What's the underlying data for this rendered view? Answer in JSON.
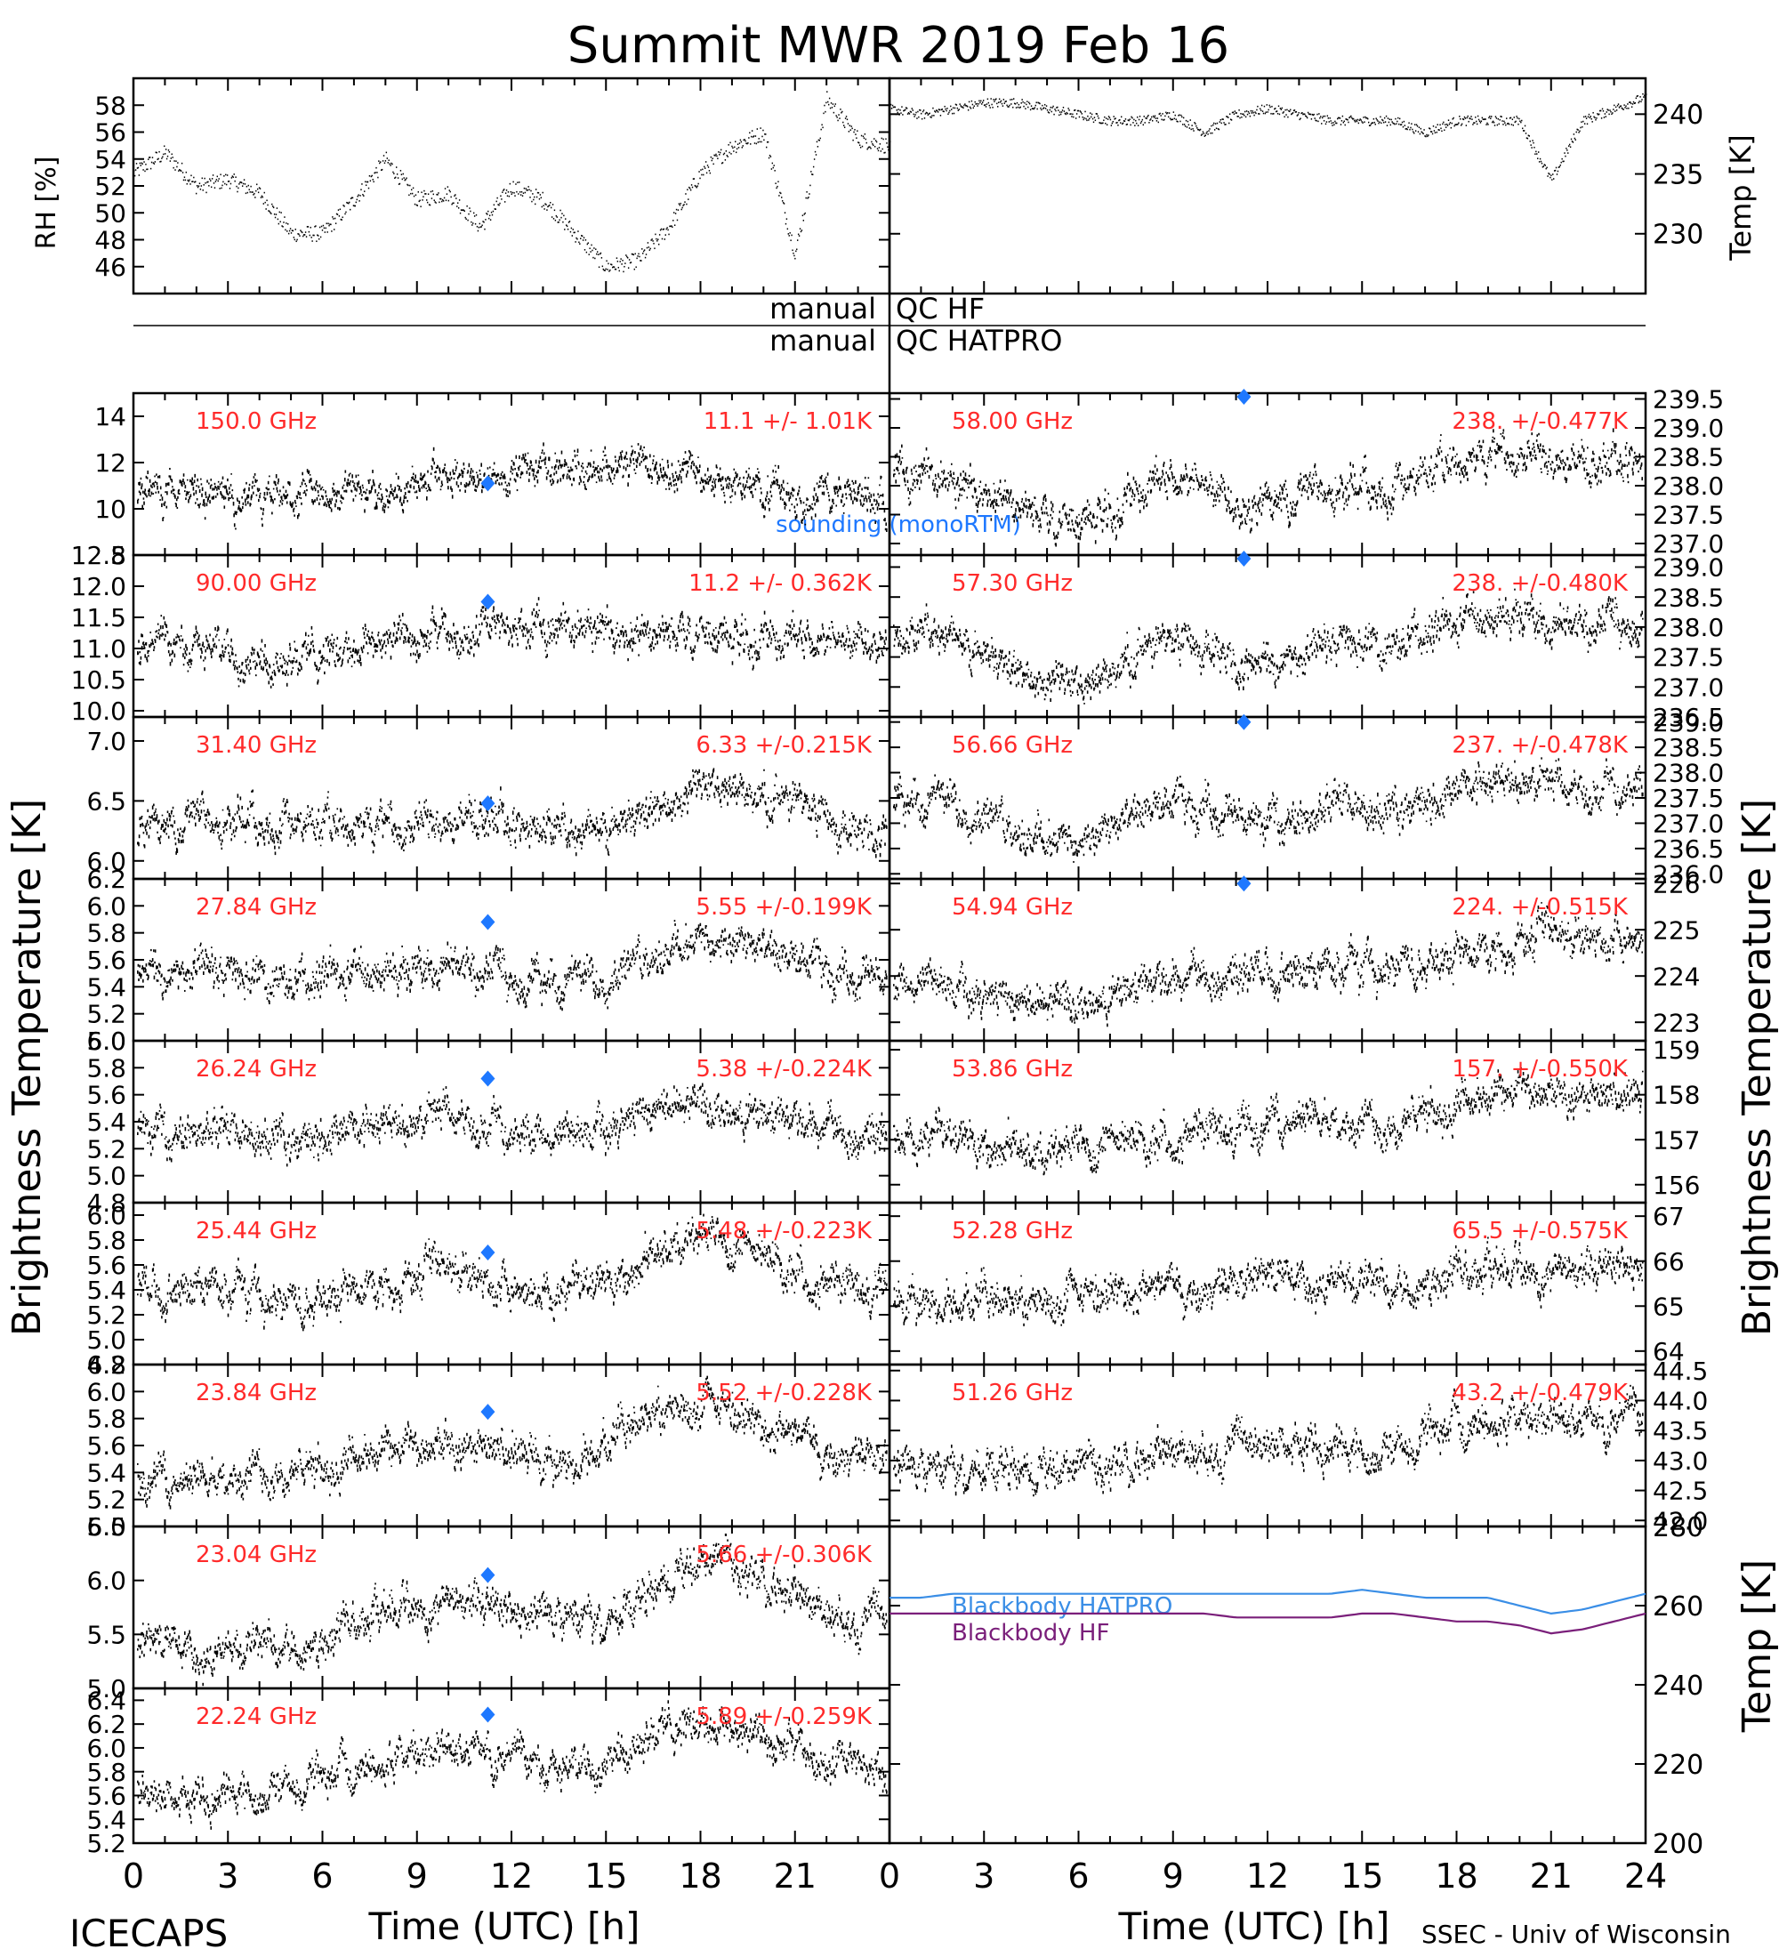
{
  "title": "Summit MWR 2019 Feb 16",
  "footer": {
    "left": "ICECAPS",
    "right": "SSEC - Univ of Wisconsin"
  },
  "axes": {
    "xlabel": "Time (UTC) [h]",
    "xticks": [
      "0",
      "3",
      "6",
      "9",
      "12",
      "15",
      "18",
      "21",
      "24"
    ],
    "ylabel_left": "Brightness Temperature [K]",
    "ylabel_right": "Brightness Temperature [K]",
    "rh_label": "RH [%]",
    "temp_label": "Temp [K]"
  },
  "qc": {
    "line1_left": "manual",
    "line1_right": "QC HF",
    "line2_left": "manual",
    "line2_right": "QC HATPRO"
  },
  "legend": {
    "sounding": "sounding (monoRTM)",
    "bb_hatpro": "Blackbody HATPRO",
    "bb_hf": "Blackbody HF"
  },
  "colors": {
    "label": "#ff2a2a",
    "sounding": "#1e78ff",
    "bb_hatpro": "#3a8ee6",
    "bb_hf": "#7a1f7a",
    "data": "#000000"
  },
  "chart_data": [
    {
      "type": "scatter",
      "panel": "RH",
      "ylim": [
        44,
        60
      ],
      "yticks": [
        "46",
        "48",
        "50",
        "52",
        "54",
        "56",
        "58"
      ],
      "x": [
        0,
        1,
        2,
        3,
        4,
        5,
        6,
        7,
        8,
        9,
        10,
        11,
        12,
        13,
        14,
        15,
        16,
        17,
        18,
        19,
        20,
        21,
        22,
        23,
        24
      ],
      "y": [
        53,
        54.5,
        52,
        52.5,
        51.5,
        48.5,
        48.5,
        51,
        54,
        51,
        51.5,
        49,
        52,
        51,
        48.5,
        46,
        46.5,
        49,
        53,
        55,
        56,
        47,
        58.5,
        55.5,
        55
      ]
    },
    {
      "type": "scatter",
      "panel": "Temp",
      "ylim": [
        225,
        243
      ],
      "yticks": [
        "230",
        "235",
        "240"
      ],
      "x": [
        0,
        1,
        2,
        3,
        4,
        5,
        6,
        7,
        8,
        9,
        10,
        11,
        12,
        13,
        14,
        15,
        16,
        17,
        18,
        19,
        20,
        21,
        22,
        23,
        24
      ],
      "y": [
        240.5,
        240,
        240.5,
        241,
        241,
        240.5,
        240,
        239.5,
        239.5,
        240,
        238.5,
        240,
        240.5,
        240,
        239.5,
        239.5,
        239.5,
        238.5,
        239.5,
        239.5,
        239.5,
        234.5,
        239.5,
        240.5,
        241.5
      ]
    },
    {
      "type": "scatter",
      "freq": "150.0 GHz",
      "stat": "11.1 +/- 1.01K",
      "ylim": [
        8,
        15
      ],
      "yticks": [
        "8",
        "10",
        "12",
        "14"
      ],
      "sounding": [
        11.25,
        11.1
      ],
      "trend": [
        10.5,
        10.8,
        11.0,
        10.4,
        10.2,
        10.4,
        10.6,
        10.8,
        11.0,
        11.1,
        11.3,
        11.4,
        11.6,
        11.8,
        11.9,
        12.0,
        11.8,
        11.9,
        11.7,
        11.2,
        11.0,
        10.8,
        10.7,
        10.6,
        10.6
      ]
    },
    {
      "type": "scatter",
      "freq": "90.00 GHz",
      "stat": "11.2 +/- 0.362K",
      "ylim": [
        9.9,
        12.5
      ],
      "yticks": [
        "10.0",
        "10.5",
        "11.0",
        "11.5",
        "12.0",
        "12.5"
      ],
      "sounding": [
        11.25,
        11.75
      ],
      "trend": [
        11.0,
        11.0,
        11.1,
        11.0,
        10.9,
        10.9,
        11.0,
        11.1,
        11.2,
        11.2,
        11.2,
        11.3,
        11.3,
        11.4,
        11.4,
        11.4,
        11.3,
        11.3,
        11.3,
        11.2,
        11.2,
        11.2,
        11.2,
        11.2,
        11.3
      ]
    },
    {
      "type": "scatter",
      "freq": "31.40 GHz",
      "stat": "6.33 +/-0.215K",
      "ylim": [
        5.85,
        7.2
      ],
      "yticks": [
        "6.0",
        "6.5",
        "7.0"
      ],
      "sounding": [
        11.25,
        6.48
      ],
      "trend": [
        6.3,
        6.3,
        6.4,
        6.4,
        6.3,
        6.3,
        6.3,
        6.3,
        6.3,
        6.3,
        6.3,
        6.4,
        6.3,
        6.3,
        6.2,
        6.3,
        6.4,
        6.5,
        6.6,
        6.6,
        6.5,
        6.5,
        6.4,
        6.3,
        6.3
      ]
    },
    {
      "type": "scatter",
      "freq": "27.84 GHz",
      "stat": "5.55 +/-0.199K",
      "ylim": [
        5.0,
        6.2
      ],
      "yticks": [
        "5.0",
        "5.2",
        "5.4",
        "5.6",
        "5.8",
        "6.0",
        "6.2"
      ],
      "sounding": [
        11.25,
        5.88
      ],
      "trend": [
        5.55,
        5.5,
        5.6,
        5.5,
        5.45,
        5.4,
        5.5,
        5.5,
        5.55,
        5.55,
        5.6,
        5.55,
        5.5,
        5.45,
        5.45,
        5.5,
        5.6,
        5.7,
        5.75,
        5.7,
        5.65,
        5.6,
        5.55,
        5.5,
        5.45
      ]
    },
    {
      "type": "scatter",
      "freq": "26.24 GHz",
      "stat": "5.38 +/-0.224K",
      "ylim": [
        4.8,
        6.0
      ],
      "yticks": [
        "4.8",
        "5.0",
        "5.2",
        "5.4",
        "5.6",
        "5.8",
        "6.0"
      ],
      "sounding": [
        11.25,
        5.72
      ],
      "trend": [
        5.35,
        5.3,
        5.4,
        5.3,
        5.3,
        5.25,
        5.35,
        5.35,
        5.4,
        5.4,
        5.45,
        5.4,
        5.35,
        5.3,
        5.3,
        5.35,
        5.45,
        5.55,
        5.55,
        5.5,
        5.45,
        5.4,
        5.35,
        5.3,
        5.3
      ]
    },
    {
      "type": "scatter",
      "freq": "25.44 GHz",
      "stat": "5.48 +/-0.223K",
      "ylim": [
        4.8,
        6.1
      ],
      "yticks": [
        "4.8",
        "5.0",
        "5.2",
        "5.4",
        "5.6",
        "5.8",
        "6.0"
      ],
      "sounding": [
        11.25,
        5.7
      ],
      "trend": [
        5.4,
        5.35,
        5.45,
        5.4,
        5.35,
        5.3,
        5.4,
        5.45,
        5.5,
        5.5,
        5.55,
        5.5,
        5.45,
        5.4,
        5.4,
        5.45,
        5.6,
        5.8,
        5.85,
        5.8,
        5.7,
        5.6,
        5.5,
        5.45,
        5.4
      ]
    },
    {
      "type": "scatter",
      "freq": "23.84 GHz",
      "stat": "5.52 +/-0.228K",
      "ylim": [
        5.0,
        6.2
      ],
      "yticks": [
        "5.0",
        "5.2",
        "5.4",
        "5.6",
        "5.8",
        "6.0",
        "6.2"
      ],
      "sounding": [
        11.25,
        5.85
      ],
      "trend": [
        5.4,
        5.35,
        5.35,
        5.4,
        5.4,
        5.4,
        5.45,
        5.5,
        5.55,
        5.55,
        5.6,
        5.6,
        5.55,
        5.5,
        5.5,
        5.6,
        5.75,
        5.85,
        5.9,
        5.85,
        5.75,
        5.7,
        5.6,
        5.55,
        5.5
      ]
    },
    {
      "type": "scatter",
      "freq": "23.04 GHz",
      "stat": "5.66 +/-0.306K",
      "ylim": [
        5.0,
        6.5
      ],
      "yticks": [
        "5.0",
        "5.5",
        "6.0",
        "6.5"
      ],
      "sounding": [
        11.25,
        6.05
      ],
      "trend": [
        5.4,
        5.4,
        5.35,
        5.35,
        5.4,
        5.45,
        5.5,
        5.65,
        5.75,
        5.8,
        5.85,
        5.85,
        5.75,
        5.7,
        5.65,
        5.6,
        5.75,
        6.0,
        6.15,
        6.2,
        6.05,
        5.9,
        5.75,
        5.65,
        5.6
      ]
    },
    {
      "type": "scatter",
      "freq": "22.24 GHz",
      "stat": "5.89 +/-0.259K",
      "ylim": [
        5.2,
        6.5
      ],
      "yticks": [
        "5.2",
        "5.4",
        "5.6",
        "5.8",
        "6.0",
        "6.2",
        "6.4"
      ],
      "sounding": [
        11.25,
        6.28
      ],
      "trend": [
        5.65,
        5.6,
        5.6,
        5.65,
        5.65,
        5.7,
        5.75,
        5.85,
        5.9,
        5.95,
        6.0,
        6.0,
        5.9,
        5.85,
        5.85,
        5.95,
        6.1,
        6.2,
        6.25,
        6.2,
        6.1,
        6.0,
        5.9,
        5.85,
        5.8
      ]
    },
    {
      "type": "scatter",
      "freq": "58.00 GHz",
      "stat": "238. +/-0.477K",
      "ylim": [
        236.8,
        239.6
      ],
      "yticks": [
        "237.0",
        "237.5",
        "238.0",
        "238.5",
        "239.0",
        "239.5"
      ],
      "sounding": [
        11.25,
        239.55
      ],
      "trend": [
        238.2,
        238.3,
        238.1,
        238.0,
        237.7,
        237.5,
        237.4,
        237.6,
        238.0,
        238.2,
        238.1,
        237.8,
        237.7,
        237.9,
        238.1,
        238.0,
        237.9,
        238.2,
        238.4,
        238.5,
        238.6,
        238.4,
        238.4,
        238.4,
        238.5
      ]
    },
    {
      "type": "scatter",
      "freq": "57.30 GHz",
      "stat": "238. +/-0.480K",
      "ylim": [
        236.5,
        239.2
      ],
      "yticks": [
        "236.5",
        "237.0",
        "237.5",
        "238.0",
        "238.5",
        "239.0"
      ],
      "sounding": [
        11.25,
        239.15
      ],
      "trend": [
        237.8,
        237.9,
        237.8,
        237.6,
        237.3,
        237.1,
        237.0,
        237.2,
        237.6,
        237.8,
        237.8,
        237.5,
        237.4,
        237.6,
        237.8,
        237.7,
        237.6,
        237.9,
        238.1,
        238.2,
        238.3,
        238.1,
        238.1,
        238.1,
        238.2
      ]
    },
    {
      "type": "scatter",
      "freq": "56.66 GHz",
      "stat": "237. +/-0.478K",
      "ylim": [
        235.9,
        239.1
      ],
      "yticks": [
        "236.0",
        "236.5",
        "237.0",
        "237.5",
        "238.0",
        "238.5",
        "239.0"
      ],
      "sounding": [
        11.25,
        239.0
      ],
      "trend": [
        237.4,
        237.5,
        237.4,
        237.2,
        236.9,
        236.7,
        236.6,
        236.8,
        237.2,
        237.4,
        237.4,
        237.1,
        237.0,
        237.2,
        237.4,
        237.3,
        237.2,
        237.5,
        237.7,
        237.8,
        237.9,
        237.7,
        237.7,
        237.7,
        237.8
      ]
    },
    {
      "type": "scatter",
      "freq": "54.94 GHz",
      "stat": "224. +/-0.515K",
      "ylim": [
        222.6,
        226.1
      ],
      "yticks": [
        "223",
        "224",
        "225",
        "226"
      ],
      "sounding": [
        11.25,
        226.0
      ],
      "trend": [
        223.8,
        223.9,
        223.7,
        223.6,
        223.5,
        223.5,
        223.5,
        223.6,
        223.8,
        223.9,
        224.0,
        224.0,
        224.0,
        224.1,
        224.2,
        224.2,
        224.2,
        224.4,
        224.6,
        224.7,
        224.8,
        224.8,
        224.8,
        224.9,
        224.9
      ]
    },
    {
      "type": "scatter",
      "freq": "53.86 GHz",
      "stat": "157. +/-0.550K",
      "ylim": [
        155.6,
        159.2
      ],
      "yticks": [
        "156",
        "157",
        "158",
        "159"
      ],
      "sounding": null,
      "trend": [
        157.1,
        157.1,
        157.0,
        156.9,
        156.9,
        156.8,
        156.9,
        157.0,
        157.1,
        157.2,
        157.3,
        157.3,
        157.4,
        157.5,
        157.5,
        157.4,
        157.3,
        157.6,
        157.8,
        157.9,
        158.0,
        158.0,
        158.0,
        158.0,
        158.0
      ]
    },
    {
      "type": "scatter",
      "freq": "52.28 GHz",
      "stat": "65.5 +/-0.575K",
      "ylim": [
        63.7,
        67.3
      ],
      "yticks": [
        "64",
        "65",
        "66",
        "67"
      ],
      "sounding": null,
      "trend": [
        65.2,
        65.2,
        65.1,
        65.1,
        65.0,
        65.1,
        65.2,
        65.3,
        65.4,
        65.5,
        65.5,
        65.5,
        65.6,
        65.6,
        65.6,
        65.5,
        65.5,
        65.7,
        65.8,
        65.9,
        65.9,
        65.9,
        65.9,
        66.0,
        66.0
      ]
    },
    {
      "type": "scatter",
      "freq": "51.26 GHz",
      "stat": "43.2 +/-0.479K",
      "ylim": [
        41.9,
        44.6
      ],
      "yticks": [
        "42.0",
        "42.5",
        "43.0",
        "43.5",
        "44.0",
        "44.5"
      ],
      "sounding": null,
      "trend": [
        42.9,
        42.9,
        42.8,
        42.8,
        42.8,
        42.8,
        42.9,
        43.0,
        43.1,
        43.2,
        43.2,
        43.2,
        43.3,
        43.3,
        43.3,
        43.2,
        43.2,
        43.4,
        43.6,
        43.7,
        43.7,
        43.7,
        43.7,
        43.7,
        43.7
      ]
    },
    {
      "type": "line",
      "panel": "Blackbody",
      "ylim": [
        200,
        280
      ],
      "yticks": [
        "200",
        "220",
        "240",
        "260",
        "280"
      ],
      "x": [
        0,
        1,
        2,
        3,
        4,
        5,
        6,
        7,
        8,
        9,
        10,
        11,
        12,
        13,
        14,
        15,
        16,
        17,
        18,
        19,
        20,
        21,
        22,
        23,
        24
      ],
      "series": [
        {
          "name": "Blackbody HATPRO",
          "values": [
            262,
            262,
            263,
            263,
            263,
            263,
            263,
            263,
            263,
            263,
            263,
            263,
            263,
            263,
            263,
            264,
            263,
            262,
            262,
            262,
            260,
            258,
            259,
            261,
            263
          ]
        },
        {
          "name": "Blackbody HF",
          "values": [
            258,
            258,
            258,
            258,
            258,
            258,
            258,
            258,
            258,
            258,
            258,
            257,
            257,
            257,
            257,
            258,
            258,
            257,
            256,
            256,
            255,
            253,
            254,
            256,
            258
          ]
        }
      ]
    }
  ]
}
